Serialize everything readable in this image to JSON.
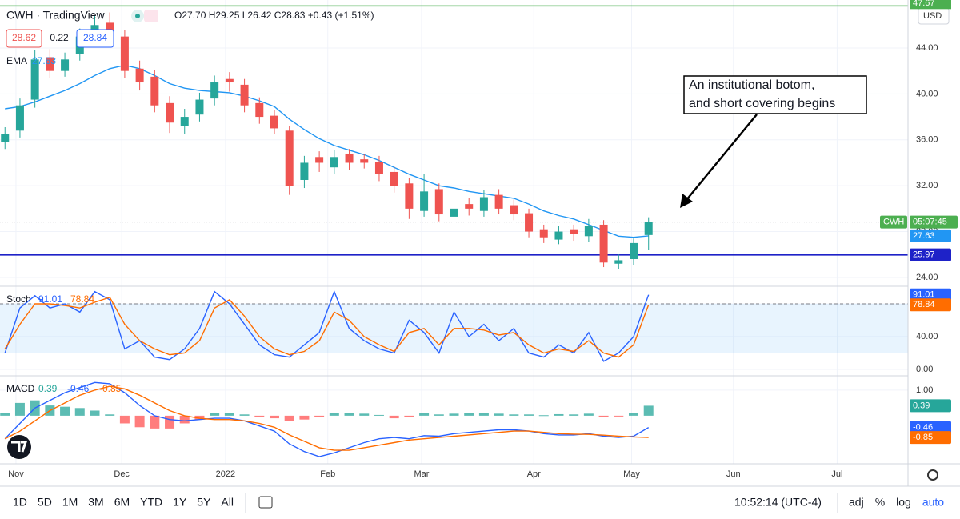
{
  "header": {
    "symbol": "CWH · TradingView",
    "ohlc": "O27.70 H29.25 L26.42 C28.83 +0.43 (+1.51%)",
    "sell": "28.62",
    "spread": "0.22",
    "buy": "28.84",
    "currency": "USD"
  },
  "chart_data": [
    {
      "type": "candlestick",
      "x": [
        1,
        4,
        7,
        10,
        13,
        16,
        19,
        22,
        25,
        28,
        31,
        34,
        37,
        40,
        43,
        46,
        49,
        52,
        55,
        58,
        61,
        64,
        67,
        70,
        73,
        76,
        79,
        82,
        85,
        88,
        91,
        94,
        97,
        100,
        103,
        106,
        109,
        112,
        115,
        118,
        121,
        124,
        127,
        130
      ],
      "open": [
        35.8,
        36.8,
        39.5,
        43.2,
        42,
        43.5,
        45,
        46.2,
        45,
        42.2,
        41.5,
        39.2,
        37.2,
        38.2,
        39.6,
        41.3,
        40.8,
        39.2,
        38.1,
        36.8,
        32.5,
        34.5,
        33.6,
        34.8,
        34.3,
        34.1,
        33.2,
        32.2,
        29.8,
        31.7,
        29.3,
        30.4,
        29.8,
        31.2,
        30.3,
        29.6,
        28.2,
        27.3,
        28.2,
        27.6,
        28.6,
        25.2,
        25.6,
        27.7
      ],
      "high": [
        37.1,
        39.6,
        43.8,
        43.9,
        43.6,
        45.7,
        46.8,
        47.1,
        45.6,
        42.9,
        42.1,
        39.8,
        38.7,
        40.1,
        41.6,
        41.9,
        41.3,
        39.7,
        38.6,
        37.2,
        34.6,
        35,
        35.1,
        35.2,
        34.8,
        34.6,
        33.7,
        32.7,
        33,
        32.2,
        30.6,
        30.9,
        31.6,
        31.7,
        30.8,
        30,
        28.6,
        28.5,
        28.6,
        29.1,
        29,
        26,
        27.4,
        29.25
      ],
      "low": [
        35.2,
        36.2,
        38.8,
        41.4,
        41.5,
        42.9,
        44.3,
        44.8,
        41.4,
        40.3,
        38.4,
        36.6,
        36.5,
        37.6,
        39,
        40.2,
        38.4,
        37.4,
        36.5,
        31.2,
        31.8,
        33.2,
        33,
        33.4,
        33.5,
        32.4,
        31.4,
        29.1,
        29.3,
        28.9,
        28.8,
        29.4,
        29.3,
        29.5,
        29,
        27.5,
        27,
        26.9,
        27.2,
        27.1,
        24.9,
        24.7,
        25.1,
        26.42
      ],
      "close": [
        36.5,
        39,
        43,
        42,
        43,
        45,
        46,
        45.5,
        42,
        41,
        39,
        37.5,
        38,
        39.5,
        41,
        41,
        39,
        38,
        37,
        32,
        34,
        34,
        34.5,
        34,
        34,
        33,
        32,
        30,
        31.5,
        29.5,
        30,
        30,
        31,
        30,
        29.5,
        28,
        27.5,
        28,
        27.8,
        28.5,
        25.3,
        25.5,
        27,
        28.83
      ],
      "up_color": "#26a69a",
      "down_color": "#ef5350",
      "ema": {
        "name": "EMA",
        "color": "#2196f3",
        "values": [
          38.7,
          38.9,
          39.3,
          39.8,
          40.3,
          40.9,
          41.6,
          42.2,
          42.5,
          42.2,
          41.6,
          40.9,
          40.5,
          40.3,
          40.2,
          40.1,
          39.8,
          39.4,
          38.9,
          37.8,
          36.9,
          36.1,
          35.5,
          35.1,
          34.7,
          34.2,
          33.6,
          33,
          32.5,
          32,
          31.8,
          31.5,
          31.3,
          31.1,
          30.9,
          30.4,
          29.8,
          29.4,
          29.1,
          28.6,
          28.1,
          27.6,
          27.5,
          27.63
        ]
      },
      "lines": [
        {
          "value": 47.67,
          "color": "#4caf50"
        },
        {
          "value": 25.97,
          "color": "#1e22c8"
        }
      ],
      "last_price": {
        "label": "CWH",
        "time": "05:07:45",
        "color": "#4caf50"
      },
      "xlim": [
        0,
        182
      ],
      "xticks": [
        {
          "value": 3.2,
          "label": "Nov"
        },
        {
          "value": 24.4,
          "label": "Dec"
        },
        {
          "value": 45.2,
          "label": "2022"
        },
        {
          "value": 65.7,
          "label": "Feb"
        },
        {
          "value": 84.5,
          "label": "Mar"
        },
        {
          "value": 107,
          "label": "Apr"
        },
        {
          "value": 126.6,
          "label": "May"
        },
        {
          "value": 147,
          "label": "Jun"
        },
        {
          "value": 167.8,
          "label": "Jul"
        }
      ],
      "ylim": [
        23.23,
        48.18
      ],
      "yticks": [
        {
          "value": 24,
          "label": "24.00"
        },
        {
          "value": 28,
          "label": "28.00"
        },
        {
          "value": 32,
          "label": "32.00"
        },
        {
          "value": 36,
          "label": "36.00"
        },
        {
          "value": 40,
          "label": "40.00"
        },
        {
          "value": 44,
          "label": "44.00"
        }
      ],
      "grid": true
    },
    {
      "type": "line",
      "title": "Stoch",
      "x": [
        1,
        4,
        7,
        10,
        13,
        16,
        19,
        22,
        25,
        28,
        31,
        34,
        37,
        40,
        43,
        46,
        49,
        52,
        55,
        58,
        61,
        64,
        67,
        70,
        73,
        76,
        79,
        82,
        85,
        88,
        91,
        94,
        97,
        100,
        103,
        106,
        109,
        112,
        115,
        118,
        121,
        124,
        127,
        130
      ],
      "series": [
        {
          "color": "#2962ff",
          "values": [
            20,
            75,
            90,
            75,
            80,
            70,
            95,
            85,
            25,
            35,
            15,
            12,
            25,
            50,
            95,
            80,
            55,
            30,
            18,
            15,
            30,
            45,
            95,
            50,
            35,
            25,
            20,
            60,
            45,
            20,
            70,
            40,
            55,
            35,
            50,
            20,
            15,
            30,
            20,
            45,
            10,
            20,
            40,
            91.01
          ]
        },
        {
          "color": "#ff6d00",
          "values": [
            25,
            55,
            80,
            80,
            78,
            75,
            82,
            88,
            55,
            35,
            25,
            18,
            20,
            35,
            75,
            85,
            65,
            40,
            25,
            18,
            22,
            35,
            70,
            60,
            40,
            30,
            22,
            45,
            50,
            30,
            50,
            50,
            48,
            42,
            45,
            30,
            20,
            25,
            22,
            35,
            20,
            15,
            30,
            78.84
          ]
        }
      ],
      "levels": [
        80,
        20
      ],
      "ylim": [
        -7.8,
        101.5
      ],
      "yticks": [
        {
          "value": 0,
          "label": "0.00"
        },
        {
          "value": 40,
          "label": "40.00"
        },
        {
          "value": 80,
          "label": "80.00"
        }
      ]
    },
    {
      "type": "combo",
      "title": "MACD",
      "x": [
        1,
        4,
        7,
        10,
        13,
        16,
        19,
        22,
        25,
        28,
        31,
        34,
        37,
        40,
        43,
        46,
        49,
        52,
        55,
        58,
        61,
        64,
        67,
        70,
        73,
        76,
        79,
        82,
        85,
        88,
        91,
        94,
        97,
        100,
        103,
        106,
        109,
        112,
        115,
        118,
        121,
        124,
        127,
        130
      ],
      "histogram": {
        "up_color": "#26a69a",
        "down_color": "#ff5252",
        "values": [
          0.1,
          0.5,
          0.6,
          0.4,
          0.35,
          0.3,
          0.2,
          0.05,
          -0.3,
          -0.45,
          -0.5,
          -0.5,
          -0.3,
          -0.15,
          0.1,
          0.12,
          0.05,
          -0.05,
          -0.1,
          -0.2,
          -0.15,
          -0.05,
          0.1,
          0.12,
          0.08,
          0.03,
          -0.1,
          -0.05,
          0.1,
          0.05,
          0.08,
          0.1,
          0.12,
          0.08,
          0.05,
          0.05,
          0.02,
          0.06,
          0.05,
          0.08,
          -0.05,
          -0.03,
          0.1,
          0.39
        ]
      },
      "series": [
        {
          "color": "#2962ff",
          "values": [
            -0.9,
            -0.3,
            0.3,
            0.6,
            0.9,
            1.1,
            1.3,
            1.25,
            0.9,
            0.4,
            0,
            -0.15,
            -0.2,
            -0.15,
            -0.1,
            -0.1,
            -0.2,
            -0.4,
            -0.6,
            -1.1,
            -1.4,
            -1.6,
            -1.45,
            -1.25,
            -1.05,
            -0.9,
            -0.85,
            -0.9,
            -0.78,
            -0.8,
            -0.7,
            -0.65,
            -0.6,
            -0.55,
            -0.55,
            -0.6,
            -0.7,
            -0.75,
            -0.75,
            -0.7,
            -0.8,
            -0.85,
            -0.8,
            -0.46
          ]
        },
        {
          "color": "#ff6d00",
          "values": [
            -0.9,
            -0.6,
            -0.2,
            0.2,
            0.5,
            0.8,
            1.0,
            1.15,
            1.05,
            0.8,
            0.5,
            0.2,
            0,
            -0.1,
            -0.15,
            -0.15,
            -0.2,
            -0.3,
            -0.45,
            -0.75,
            -1.0,
            -1.25,
            -1.35,
            -1.35,
            -1.25,
            -1.15,
            -1.05,
            -0.95,
            -0.9,
            -0.85,
            -0.8,
            -0.75,
            -0.7,
            -0.65,
            -0.6,
            -0.6,
            -0.65,
            -0.7,
            -0.72,
            -0.73,
            -0.76,
            -0.8,
            -0.83,
            -0.85
          ]
        }
      ],
      "ylim": [
        -1.88,
        1.56
      ],
      "yticks": [
        {
          "value": 1,
          "label": "1.00"
        }
      ]
    }
  ],
  "annotation": {
    "lines": [
      "An institutional botom,",
      "and short covering begins"
    ]
  },
  "toolbar": {
    "ranges": [
      "1D",
      "5D",
      "1M",
      "3M",
      "6M",
      "YTD",
      "1Y",
      "5Y",
      "All"
    ],
    "time": "10:52:14 (UTC-4)",
    "options": [
      "adj",
      "%",
      "log",
      "auto"
    ]
  }
}
